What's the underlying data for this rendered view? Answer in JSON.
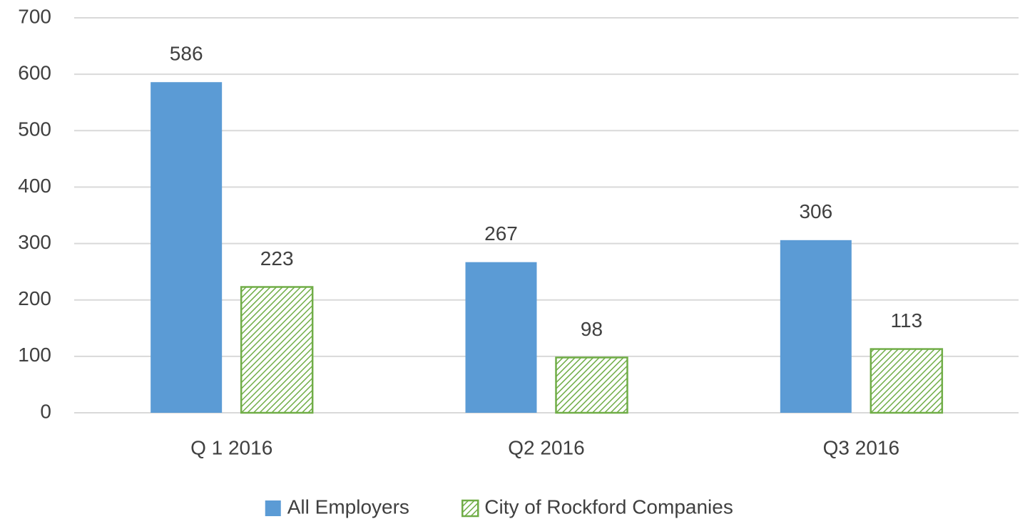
{
  "chart_data": {
    "type": "bar",
    "categories": [
      "Q 1 2016",
      "Q2 2016",
      "Q3 2016"
    ],
    "series": [
      {
        "name": "All Employers",
        "color": "#5b9bd5",
        "values": [
          586,
          267,
          306
        ]
      },
      {
        "name": "City of Rockford Companies",
        "color": "#70ad47",
        "hatch": true,
        "values": [
          223,
          98,
          113
        ]
      }
    ],
    "ylim": [
      0,
      700
    ],
    "yticks": [
      0,
      100,
      200,
      300,
      400,
      500,
      600,
      700
    ],
    "grid": true,
    "legend": "bottom"
  }
}
